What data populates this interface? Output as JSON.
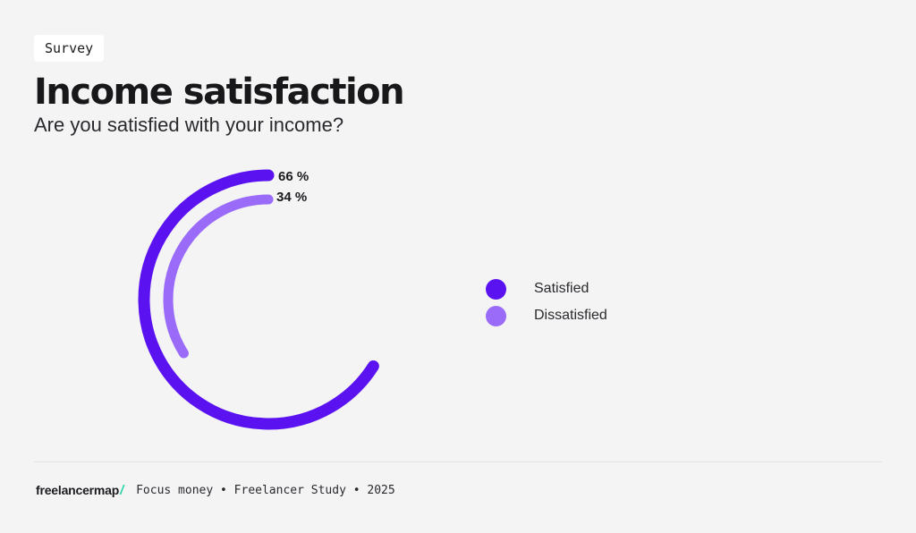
{
  "tag": "Survey",
  "title": "Income satisfaction",
  "subtitle": "Are you satisfied with your income?",
  "colors": {
    "satisfied": "#5b12f0",
    "dissatisfied": "#9a6bf9",
    "background": "#f4f4f5",
    "brand_slash": "#2bd4a8"
  },
  "chart_data": {
    "type": "radial-bar",
    "series": [
      {
        "name": "Satisfied",
        "value": 66,
        "label": "66 %"
      },
      {
        "name": "Dissatisfied",
        "value": 34,
        "label": "34 %"
      }
    ],
    "legend_position": "right"
  },
  "footer": {
    "brand": "freelancermap",
    "brand_mark": "/",
    "source": "Focus money • Freelancer Study • 2025"
  }
}
